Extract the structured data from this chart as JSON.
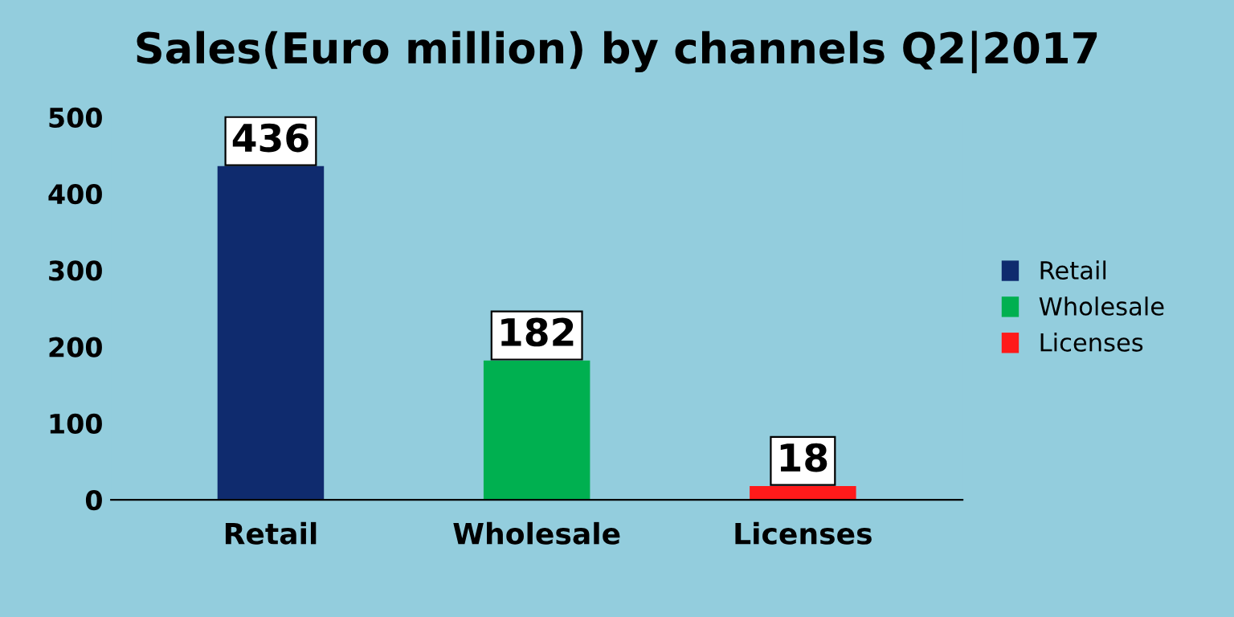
{
  "chart_data": {
    "type": "bar",
    "title": "Sales(Euro million) by channels Q2|2017",
    "categories": [
      "Retail",
      "Wholesale",
      "Licenses"
    ],
    "series": [
      {
        "name": "Retail",
        "color": "#0f2b6e",
        "values": [
          436,
          null,
          null
        ]
      },
      {
        "name": "Wholesale",
        "color": "#00b050",
        "values": [
          null,
          182,
          null
        ]
      },
      {
        "name": "Licenses",
        "color": "#ff1a1a",
        "values": [
          null,
          null,
          18
        ]
      }
    ],
    "ylim": [
      0,
      500
    ],
    "yticks": [
      0,
      100,
      200,
      300,
      400,
      500
    ],
    "grid": false,
    "legend": "right",
    "data_labels": true
  }
}
